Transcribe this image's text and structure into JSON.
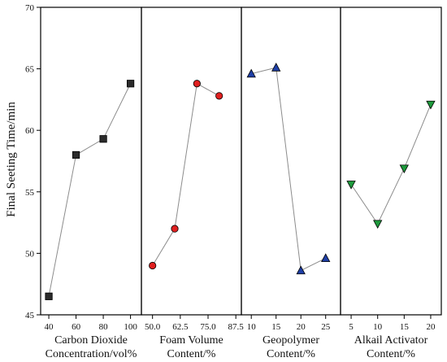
{
  "chart_data": {
    "type": "line",
    "ylabel": "Final Seeting Time/min",
    "ylim": [
      45,
      70
    ],
    "yticks": [
      "45",
      "50",
      "55",
      "60",
      "65",
      "70"
    ],
    "grid": false,
    "line_color": "#8c8c8c",
    "panels": [
      {
        "xlabel": [
          "Carbon Dioxide",
          "Concentration/vol%"
        ],
        "marker": "square",
        "color": "#2b2b2b",
        "ticks": [
          40,
          60,
          80,
          100
        ],
        "tick_labels": [
          "40",
          "60",
          "80",
          "100"
        ],
        "xlim": [
          34,
          108
        ],
        "x": [
          40,
          60,
          80,
          100
        ],
        "y": [
          46.5,
          58.0,
          59.3,
          63.8
        ]
      },
      {
        "xlabel": [
          "Foam Volume",
          "Content/%"
        ],
        "marker": "circle",
        "color": "#e02020",
        "ticks": [
          50.0,
          62.5,
          75.0,
          87.5
        ],
        "tick_labels": [
          "50.0",
          "62.5",
          "75.0",
          "87.5"
        ],
        "xlim": [
          45,
          90
        ],
        "x": [
          50.0,
          60.0,
          70.0,
          80.0
        ],
        "y": [
          49.0,
          52.0,
          63.8,
          62.8
        ]
      },
      {
        "xlabel": [
          "Geopolymer",
          "Content/%"
        ],
        "marker": "triangle-up",
        "color": "#1f3fa6",
        "ticks": [
          10,
          15,
          20,
          25
        ],
        "tick_labels": [
          "10",
          "15",
          "20",
          "25"
        ],
        "xlim": [
          8,
          28
        ],
        "x": [
          10,
          15,
          20,
          25
        ],
        "y": [
          64.6,
          65.1,
          48.6,
          49.6
        ]
      },
      {
        "xlabel": [
          "Alkail Activator",
          "Content/%"
        ],
        "marker": "triangle-down",
        "color": "#1e9a3c",
        "ticks": [
          5,
          10,
          15,
          20
        ],
        "tick_labels": [
          "5",
          "10",
          "15",
          "20"
        ],
        "xlim": [
          3,
          22
        ],
        "x": [
          5,
          10,
          15,
          20
        ],
        "y": [
          55.6,
          52.4,
          56.9,
          62.1
        ]
      }
    ]
  }
}
